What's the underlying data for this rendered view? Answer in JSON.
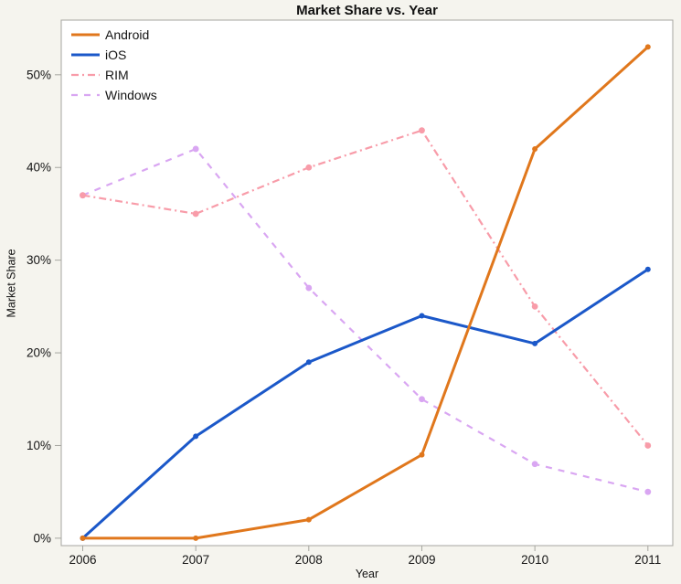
{
  "chart_data": {
    "type": "line",
    "title": "Market Share vs. Year",
    "xlabel": "Year",
    "ylabel": "Market Share",
    "x": [
      2006,
      2007,
      2008,
      2009,
      2010,
      2011
    ],
    "xticks": [
      2006,
      2007,
      2008,
      2009,
      2010,
      2011
    ],
    "yticks": [
      0,
      10,
      20,
      30,
      40,
      50
    ],
    "ytick_suffix": "%",
    "xlim": [
      2005.81,
      2011.22
    ],
    "ylim": [
      -0.8,
      55.9
    ],
    "grid": false,
    "legend_position": "top-left",
    "series": [
      {
        "name": "Android",
        "values": [
          0,
          0,
          2,
          9,
          42,
          53
        ],
        "color": "#E0771C",
        "style": "solid",
        "width": 3
      },
      {
        "name": "iOS",
        "values": [
          0,
          11,
          19,
          24,
          21,
          29
        ],
        "color": "#1B58C9",
        "style": "solid",
        "width": 3
      },
      {
        "name": "RIM",
        "values": [
          37,
          35,
          40,
          44,
          25,
          10
        ],
        "color": "#F89CA9",
        "style": "dashdot",
        "width": 2.2
      },
      {
        "name": "Windows",
        "values": [
          37,
          42,
          27,
          15,
          8,
          5
        ],
        "color": "#D9A6F2",
        "style": "dashed",
        "width": 2.2
      }
    ]
  },
  "colors": {
    "background": "#F5F4EE",
    "plot_background": "#FFFFFF",
    "axis": "#A6A6A0",
    "text": "#151515"
  }
}
